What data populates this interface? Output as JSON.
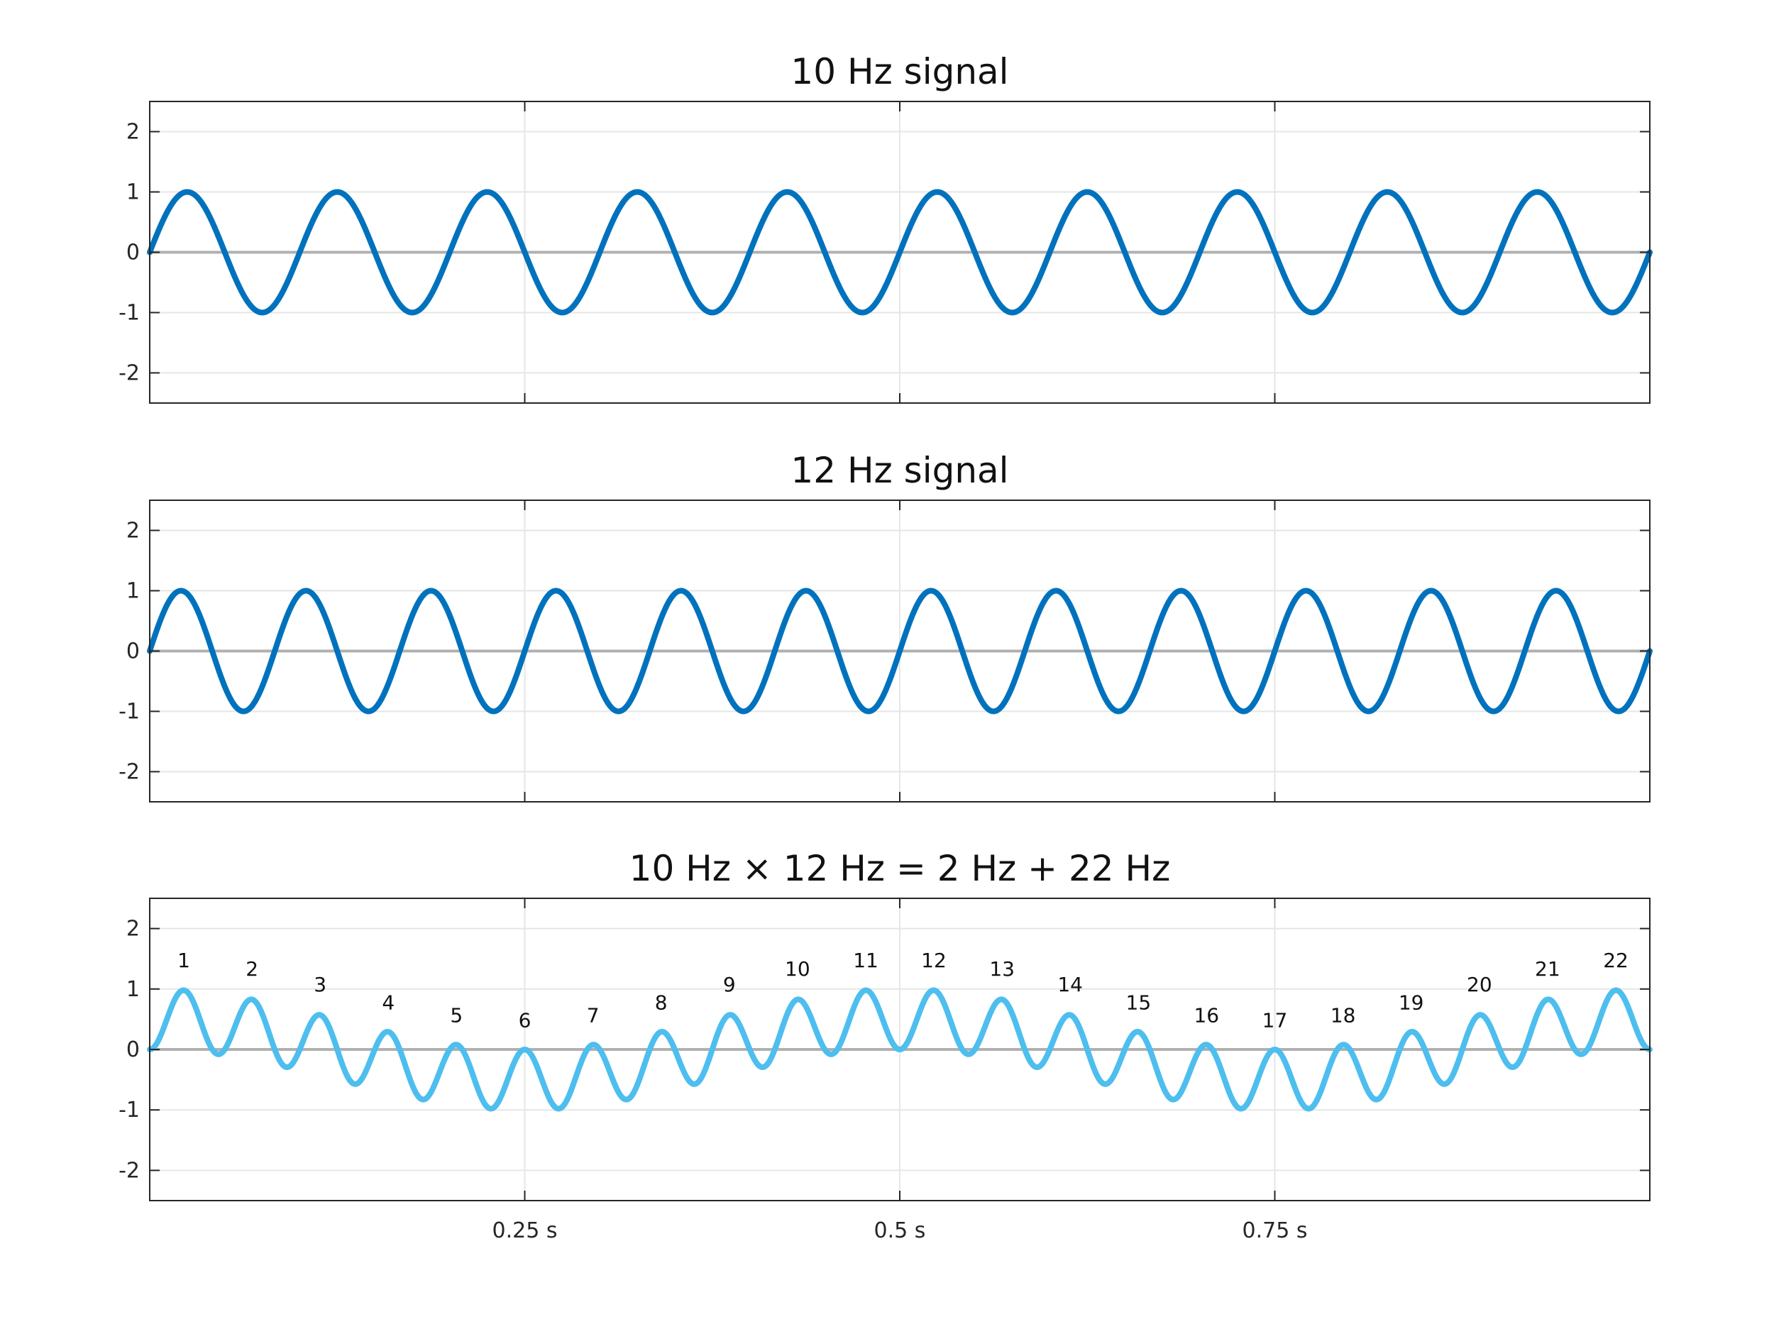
{
  "chart_data": [
    {
      "type": "line",
      "title": "10 Hz signal",
      "xlabel": "",
      "ylabel": "",
      "xlim": [
        0,
        1
      ],
      "ylim": [
        -2.5,
        2.5
      ],
      "yticks": [
        -2,
        -1,
        0,
        1,
        2
      ],
      "ytick_labels": [
        "-2",
        "-1",
        "0",
        "1",
        "2"
      ],
      "xticks": [
        0.25,
        0.5,
        0.75
      ],
      "xtick_labels": [],
      "grid": true,
      "zero_line": true,
      "series": [
        {
          "function": "sin",
          "frequency_hz": 10,
          "amplitude": 1,
          "color": "#0072bd"
        }
      ],
      "annotations": []
    },
    {
      "type": "line",
      "title": "12 Hz signal",
      "xlabel": "",
      "ylabel": "",
      "xlim": [
        0,
        1
      ],
      "ylim": [
        -2.5,
        2.5
      ],
      "yticks": [
        -2,
        -1,
        0,
        1,
        2
      ],
      "ytick_labels": [
        "-2",
        "-1",
        "0",
        "1",
        "2"
      ],
      "xticks": [
        0.25,
        0.5,
        0.75
      ],
      "xtick_labels": [],
      "grid": true,
      "zero_line": true,
      "series": [
        {
          "function": "sin",
          "frequency_hz": 12,
          "amplitude": 1,
          "color": "#0072bd"
        }
      ],
      "annotations": []
    },
    {
      "type": "line",
      "title": "10 Hz × 12 Hz = 2 Hz + 22 Hz",
      "xlabel": "",
      "ylabel": "",
      "xlim": [
        0,
        1
      ],
      "ylim": [
        -2.5,
        2.5
      ],
      "yticks": [
        -2,
        -1,
        0,
        1,
        2
      ],
      "ytick_labels": [
        "-2",
        "-1",
        "0",
        "1",
        "2"
      ],
      "xticks": [
        0.25,
        0.5,
        0.75
      ],
      "xtick_labels": [
        "0.25 s",
        "0.5 s",
        "0.75 s"
      ],
      "grid": true,
      "zero_line": true,
      "series": [
        {
          "function": "product",
          "frequencies_hz": [
            10,
            12
          ],
          "amplitude": 1,
          "color": "#4dbeee"
        }
      ],
      "annotations": [
        {
          "text": "1",
          "x": 0.0227,
          "y": 1.48
        },
        {
          "text": "2",
          "x": 0.0682,
          "y": 1.34
        },
        {
          "text": "3",
          "x": 0.1136,
          "y": 1.08
        },
        {
          "text": "4",
          "x": 0.1591,
          "y": 0.78
        },
        {
          "text": "5",
          "x": 0.2045,
          "y": 0.57
        },
        {
          "text": "6",
          "x": 0.25,
          "y": 0.49
        },
        {
          "text": "7",
          "x": 0.2955,
          "y": 0.57
        },
        {
          "text": "8",
          "x": 0.3409,
          "y": 0.78
        },
        {
          "text": "9",
          "x": 0.3864,
          "y": 1.08
        },
        {
          "text": "10",
          "x": 0.4318,
          "y": 1.34
        },
        {
          "text": "11",
          "x": 0.4773,
          "y": 1.48
        },
        {
          "text": "12",
          "x": 0.5227,
          "y": 1.48
        },
        {
          "text": "13",
          "x": 0.5682,
          "y": 1.34
        },
        {
          "text": "14",
          "x": 0.6136,
          "y": 1.08
        },
        {
          "text": "15",
          "x": 0.6591,
          "y": 0.78
        },
        {
          "text": "16",
          "x": 0.7045,
          "y": 0.57
        },
        {
          "text": "17",
          "x": 0.75,
          "y": 0.49
        },
        {
          "text": "18",
          "x": 0.7955,
          "y": 0.57
        },
        {
          "text": "19",
          "x": 0.8409,
          "y": 0.78
        },
        {
          "text": "20",
          "x": 0.8864,
          "y": 1.08
        },
        {
          "text": "21",
          "x": 0.9318,
          "y": 1.34
        },
        {
          "text": "22",
          "x": 0.9773,
          "y": 1.48
        }
      ]
    }
  ],
  "colors": {
    "grid": "#e6e6e6",
    "zero_line": "#b0b0b0",
    "axis": "#262626",
    "background": "#ffffff"
  }
}
